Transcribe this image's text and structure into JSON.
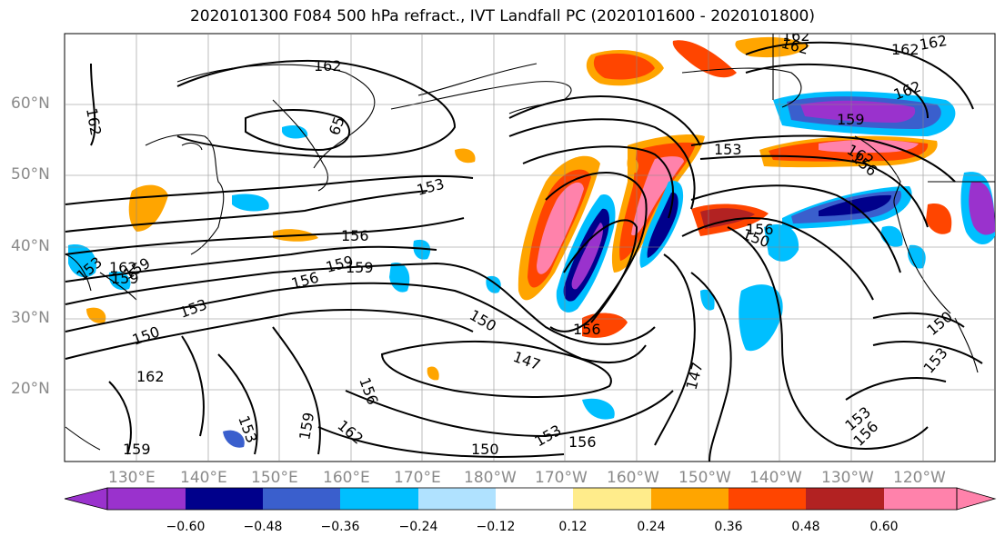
{
  "title": "2020101300 F084 500 hPa refract., IVT Landfall PC (2020101600 - 2020101800)",
  "lat_labels": [
    "60°N",
    "50°N",
    "40°N",
    "30°N",
    "20°N"
  ],
  "lon_labels": [
    "130°E",
    "140°E",
    "150°E",
    "160°E",
    "170°E",
    "180°W",
    "170°W",
    "160°W",
    "150°W",
    "140°W",
    "130°W",
    "120°W"
  ],
  "contour_labels": [
    "162",
    "162",
    "162",
    "162",
    "159",
    "156",
    "162",
    "162",
    "162",
    "65",
    "153",
    "156",
    "159",
    "156",
    "153",
    "150",
    "150",
    "147",
    "156",
    "150",
    "159",
    "153",
    "156",
    "162",
    "159",
    "147",
    "150",
    "153",
    "156",
    "153",
    "153",
    "159",
    "156",
    "150",
    "153",
    "156",
    "162",
    "159",
    "159",
    "162",
    "162",
    "153"
  ],
  "colorbar": {
    "ticks": [
      "−0.60",
      "−0.48",
      "−0.36",
      "−0.24",
      "−0.12",
      "0.12",
      "0.24",
      "0.36",
      "0.48",
      "0.60"
    ],
    "colors": [
      "#9a32cd",
      "#00008b",
      "#3a5fcd",
      "#00bfff",
      "#b0e2ff",
      "#ffffff",
      "#ffec8b",
      "#ffa500",
      "#ff4500",
      "#b22222",
      "#ff82ab"
    ]
  }
}
